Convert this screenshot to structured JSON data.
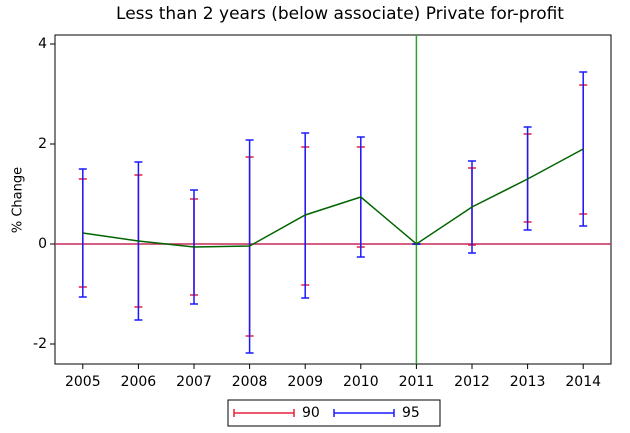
{
  "chart_data": {
    "type": "line",
    "title": "Less than 2 years (below associate) Private for-profit",
    "y_label": "% Change",
    "x": [
      2005,
      2006,
      2007,
      2008,
      2009,
      2010,
      2011,
      2012,
      2013,
      2014
    ],
    "xlim": [
      2004.5,
      2014.5
    ],
    "xticks": [
      2005,
      2006,
      2007,
      2008,
      2009,
      2010,
      2011,
      2012,
      2013,
      2014
    ],
    "ylim": [
      -2.4,
      4.18
    ],
    "yticks": [
      -2,
      0,
      2,
      4
    ],
    "hline": {
      "value": 0,
      "color": "#c8285a"
    },
    "vline": {
      "value": 2011,
      "color": "#2ca02c"
    },
    "estimate": {
      "color": "#006400",
      "values": [
        0.22,
        0.06,
        -0.06,
        -0.04,
        0.58,
        0.94,
        0,
        0.74,
        1.3,
        1.9
      ]
    },
    "intervals": [
      {
        "name": "90",
        "color": "#e8203c",
        "lower": [
          -0.86,
          -1.26,
          -1.02,
          -1.84,
          -0.82,
          -0.06,
          0,
          -0.02,
          0.44,
          0.6
        ],
        "upper": [
          1.3,
          1.38,
          0.9,
          1.74,
          1.94,
          1.94,
          0,
          1.52,
          2.2,
          3.18
        ]
      },
      {
        "name": "95",
        "color": "#1a1aff",
        "lower": [
          -1.06,
          -1.52,
          -1.2,
          -2.18,
          -1.08,
          -0.26,
          0,
          -0.18,
          0.28,
          0.36
        ],
        "upper": [
          1.5,
          1.64,
          1.08,
          2.08,
          2.22,
          2.14,
          0,
          1.66,
          2.34,
          3.44
        ]
      }
    ]
  }
}
